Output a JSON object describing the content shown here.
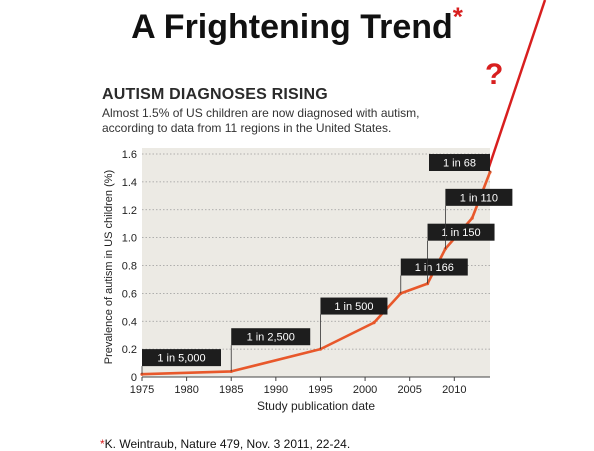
{
  "slide": {
    "title": "A Frightening Trend",
    "title_mark": "*",
    "question_mark": "?",
    "footnote_mark": "*",
    "footnote": "K. Weintraub, Nature 479, Nov. 3 2011, 22-24."
  },
  "colors": {
    "series": "#e8582b",
    "extrapolation": "#d81f1f",
    "plot_background": "#eceae4",
    "label_box": "#1d1d1d",
    "label_text": "#ffffff"
  },
  "chart_data": {
    "type": "line",
    "title": "AUTISM DIAGNOSES RISING",
    "subtitle": "Almost 1.5% of US children are now diagnosed with autism, according to data from 11 regions in the United States.",
    "xlabel": "Study publication date",
    "ylabel": "Prevalence of autism in US children (%)",
    "xlim": [
      1975,
      2014
    ],
    "ylim": [
      0,
      1.6
    ],
    "xticks": [
      "1975",
      "1980",
      "1985",
      "1990",
      "1995",
      "2000",
      "2005",
      "2010"
    ],
    "yticks": [
      "0",
      "0.2",
      "0.4",
      "0.6",
      "0.8",
      "1.0",
      "1.2",
      "1.4",
      "1.6"
    ],
    "grid": "horizontal dotted",
    "series": [
      {
        "x": [
          1975,
          1985,
          1995,
          2001,
          2004,
          2007,
          2009,
          2012,
          2014
        ],
        "y": [
          0.02,
          0.04,
          0.2,
          0.39,
          0.6,
          0.67,
          0.92,
          1.14,
          1.47
        ]
      }
    ],
    "annotations": [
      {
        "label": "1 in 5,000",
        "x": 1975,
        "y": 0.02,
        "box_y": 0.2
      },
      {
        "label": "1 in 2,500",
        "x": 1985,
        "y": 0.04,
        "box_y": 0.35
      },
      {
        "label": "1 in 500",
        "x": 1995,
        "y": 0.2,
        "box_y": 0.57
      },
      {
        "label": "1 in 166",
        "x": 2004,
        "y": 0.6,
        "box_y": 0.85
      },
      {
        "label": "1 in 150",
        "x": 2007,
        "y": 0.67,
        "box_y": 1.1
      },
      {
        "label": "1 in 110",
        "x": 2009,
        "y": 0.92,
        "box_y": 1.35
      },
      {
        "label": "1 in 68",
        "x": 2014,
        "y": 1.47,
        "box_y": 1.6
      }
    ]
  }
}
